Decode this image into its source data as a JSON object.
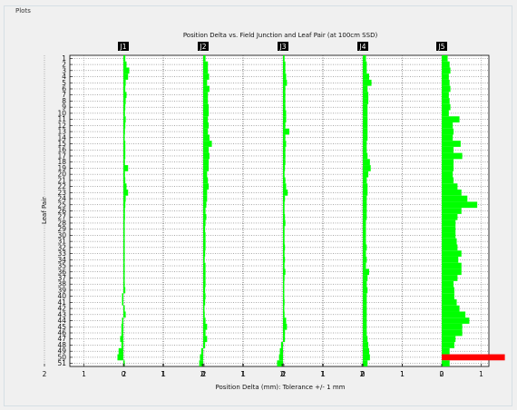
{
  "panel": {
    "legend": "Plots"
  },
  "chart_data": {
    "type": "bar",
    "title": "Position Delta vs. Field Junction and Leaf Pair (at 100cm SSD)",
    "xlabel": "Position Delta (mm): Tolerance +/- 1 mm",
    "ylabel": "Leaf Pair",
    "grid": true,
    "orientation": "horizontal",
    "xlim_per_panel": [
      -2.5,
      2.5
    ],
    "x_ticks": [
      2,
      1,
      0,
      1,
      2
    ],
    "junctions": [
      "J1",
      "J2",
      "J3",
      "J4",
      "J5"
    ],
    "leaf_pairs": [
      1,
      2,
      3,
      4,
      5,
      6,
      7,
      8,
      9,
      10,
      11,
      12,
      13,
      14,
      15,
      16,
      17,
      18,
      19,
      20,
      21,
      22,
      23,
      24,
      25,
      26,
      27,
      28,
      29,
      30,
      31,
      32,
      33,
      34,
      35,
      36,
      37,
      38,
      39,
      40,
      41,
      42,
      43,
      44,
      45,
      46,
      47,
      48,
      49,
      50,
      51
    ],
    "tolerance_mm": 1,
    "colors": {
      "within": "#00ff00",
      "exceeds": "#ff0000"
    },
    "series": [
      {
        "values": [
          0.05,
          0.08,
          0.15,
          0.12,
          0.06,
          0.05,
          0.08,
          0.06,
          0.05,
          0.04,
          0.06,
          0.05,
          0.04,
          0.03,
          0.05,
          0.05,
          0.05,
          0.04,
          0.12,
          0.04,
          0.05,
          0.08,
          0.12,
          0.06,
          0.05,
          0.04,
          0.04,
          0.03,
          0.03,
          0.02,
          0.02,
          0.01,
          0.0,
          0.01,
          0.02,
          0.03,
          0.02,
          0.01,
          0.05,
          -0.03,
          -0.02,
          0.0,
          0.06,
          -0.02,
          -0.05,
          -0.05,
          -0.08,
          -0.05,
          -0.12,
          -0.15,
          0.0
        ]
      },
      {
        "values": [
          0.06,
          0.12,
          0.12,
          0.15,
          0.1,
          0.16,
          0.12,
          0.12,
          0.14,
          0.14,
          0.12,
          0.14,
          0.12,
          0.16,
          0.22,
          0.14,
          0.16,
          0.14,
          0.14,
          0.1,
          0.12,
          0.14,
          0.1,
          0.1,
          0.08,
          0.06,
          0.08,
          0.06,
          0.05,
          0.06,
          0.06,
          0.06,
          0.05,
          0.04,
          0.06,
          0.06,
          0.06,
          0.06,
          0.05,
          0.06,
          0.05,
          0.03,
          0.04,
          0.06,
          0.1,
          0.06,
          0.1,
          0.05,
          -0.05,
          -0.08,
          -0.1
        ]
      },
      {
        "values": [
          0.04,
          0.06,
          0.06,
          0.08,
          0.1,
          0.06,
          0.06,
          0.06,
          0.06,
          0.08,
          0.08,
          0.06,
          0.16,
          0.06,
          0.08,
          0.06,
          0.06,
          0.06,
          0.05,
          0.04,
          0.06,
          0.08,
          0.12,
          0.05,
          0.04,
          0.04,
          0.05,
          0.06,
          0.04,
          0.04,
          0.04,
          0.05,
          0.04,
          0.05,
          0.04,
          0.06,
          0.04,
          0.03,
          0.03,
          0.03,
          0.04,
          0.03,
          0.04,
          0.08,
          0.1,
          0.05,
          0.05,
          -0.05,
          -0.08,
          -0.1,
          -0.15
        ]
      },
      {
        "values": [
          0.08,
          0.1,
          0.1,
          0.16,
          0.22,
          0.12,
          0.14,
          0.14,
          0.12,
          0.12,
          0.12,
          0.12,
          0.12,
          0.12,
          0.1,
          0.1,
          0.12,
          0.18,
          0.2,
          0.14,
          0.1,
          0.12,
          0.12,
          0.1,
          0.1,
          0.1,
          0.1,
          0.08,
          0.08,
          0.08,
          0.08,
          0.1,
          0.08,
          0.1,
          0.08,
          0.16,
          0.12,
          0.1,
          0.12,
          0.1,
          0.1,
          0.1,
          0.1,
          0.1,
          0.1,
          0.1,
          0.12,
          0.14,
          0.16,
          0.18,
          0.12
        ]
      },
      {
        "values": [
          0.15,
          0.2,
          0.22,
          0.18,
          0.2,
          0.22,
          0.18,
          0.2,
          0.22,
          0.18,
          0.45,
          0.28,
          0.3,
          0.28,
          0.48,
          0.3,
          0.52,
          0.3,
          0.3,
          0.28,
          0.3,
          0.4,
          0.5,
          0.65,
          0.9,
          0.5,
          0.4,
          0.35,
          0.35,
          0.35,
          0.38,
          0.4,
          0.5,
          0.42,
          0.5,
          0.5,
          0.4,
          0.3,
          0.32,
          0.32,
          0.38,
          0.45,
          0.6,
          0.7,
          0.52,
          0.52,
          0.35,
          0.32,
          0.2,
          1.6,
          0.2
        ]
      }
    ]
  }
}
